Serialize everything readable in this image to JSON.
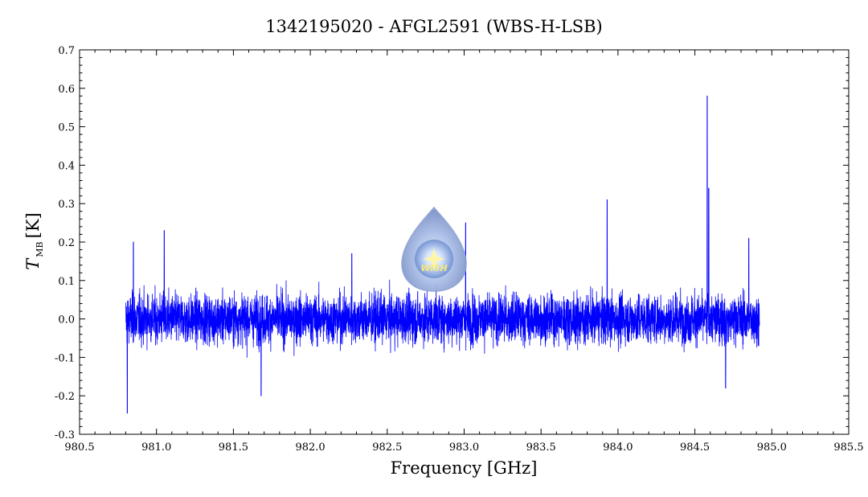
{
  "chart_data": {
    "type": "line",
    "title": "1342195020 - AFGL2591 (WBS-H-LSB)",
    "xlabel": "Frequency [GHz]",
    "ylabel_main": "T",
    "ylabel_sub": "MB",
    "ylabel_unit": "[K]",
    "xlim": [
      980.5,
      985.5
    ],
    "ylim": [
      -0.3,
      0.7
    ],
    "xticks": [
      "980.5",
      "981.0",
      "981.5",
      "982.0",
      "982.5",
      "983.0",
      "983.5",
      "984.0",
      "984.5",
      "985.0",
      "985.5"
    ],
    "yticks": [
      "-0.3",
      "-0.2",
      "-0.1",
      "0.0",
      "0.1",
      "0.2",
      "0.3",
      "0.4",
      "0.5",
      "0.6",
      "0.7"
    ],
    "series": [
      {
        "color": "#0000ff",
        "x_range": [
          980.8,
          984.92
        ],
        "noise_rms": 0.06,
        "baseline": 0.0,
        "features": [
          {
            "x": 980.81,
            "y": -0.245
          },
          {
            "x": 980.85,
            "y": 0.2
          },
          {
            "x": 981.05,
            "y": 0.23
          },
          {
            "x": 981.68,
            "y": -0.2
          },
          {
            "x": 982.27,
            "y": 0.17
          },
          {
            "x": 983.01,
            "y": 0.25
          },
          {
            "x": 983.93,
            "y": 0.31
          },
          {
            "x": 984.58,
            "y": 0.58
          },
          {
            "x": 984.59,
            "y": 0.34
          },
          {
            "x": 984.7,
            "y": -0.18
          },
          {
            "x": 984.85,
            "y": 0.21
          }
        ]
      }
    ],
    "grid": false,
    "logo_text": "WISH"
  }
}
